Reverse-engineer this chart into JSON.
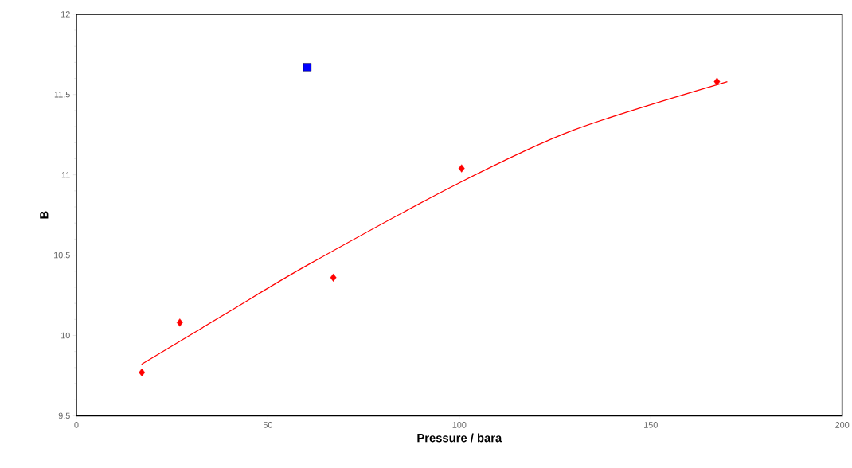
{
  "chart_data": {
    "type": "scatter",
    "xlabel": "Pressure / bara",
    "ylabel": "B",
    "xlim": [
      0,
      200
    ],
    "ylim": [
      9.5,
      12
    ],
    "xticks": [
      0,
      50,
      100,
      150,
      200
    ],
    "yticks": [
      9.5,
      10,
      10.5,
      11,
      11.5,
      12
    ],
    "grid": false,
    "series": [
      {
        "color": "#ff0000",
        "marker": "diamond",
        "x": [
          17.1,
          27.0,
          67.1,
          100.6,
          167.3
        ],
        "values": [
          9.77,
          10.08,
          10.36,
          11.04,
          11.58
        ]
      },
      {
        "color": "#0000ff",
        "marker": "square",
        "x": [
          60.3
        ],
        "values": [
          11.67
        ]
      },
      {
        "type": "line",
        "color": "#ff0000",
        "marker": "none",
        "line_style": "solid",
        "x": [
          17,
          40,
          60.5,
          100,
          130,
          170
        ],
        "values": [
          9.82,
          10.15,
          10.44,
          10.95,
          11.28,
          11.58
        ]
      }
    ]
  }
}
